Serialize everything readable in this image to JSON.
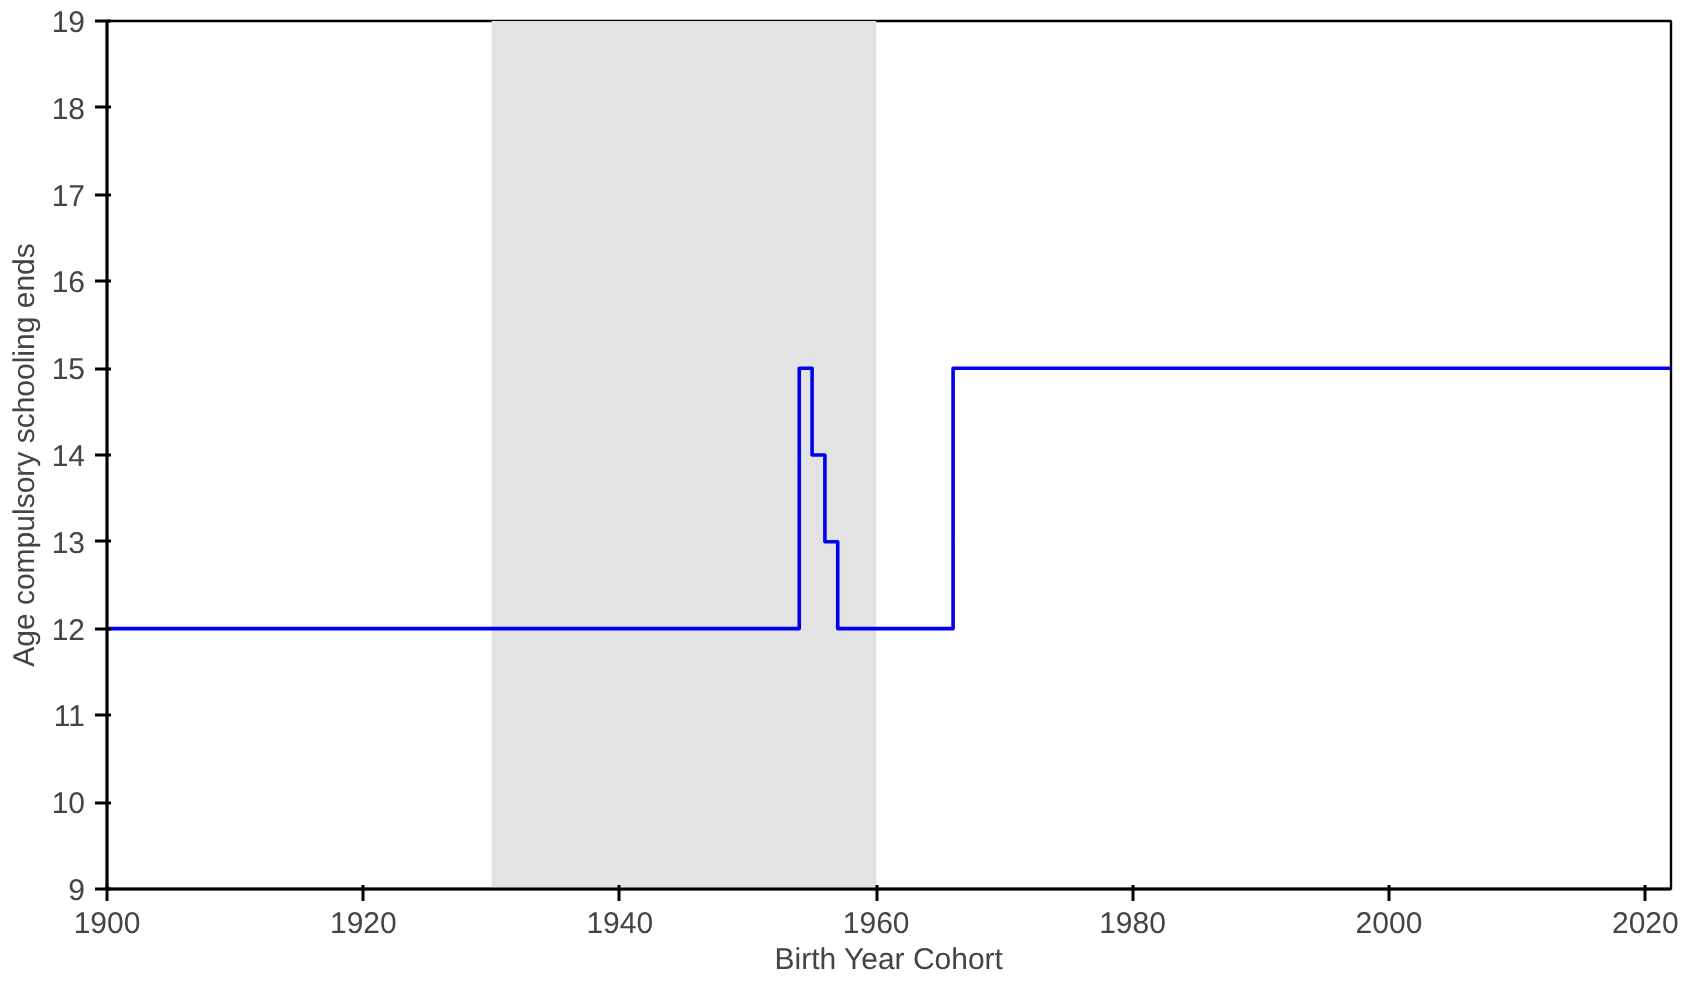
{
  "chart_data": {
    "type": "step",
    "xlabel": "Birth Year Cohort",
    "ylabel": "Age compulsory schooling ends",
    "x": [
      1900,
      1954,
      1955,
      1956,
      1957,
      1966,
      2022
    ],
    "series": [
      {
        "color": "#0000ee",
        "values": [
          12,
          15,
          14,
          13,
          12,
          15,
          15
        ]
      }
    ],
    "xlim": [
      1900,
      2022
    ],
    "xticks": [
      1900,
      1920,
      1940,
      1960,
      1980,
      2000,
      2020
    ],
    "ylim": [
      9,
      19
    ],
    "yticks": [
      9,
      10,
      11,
      12,
      13,
      14,
      15,
      16,
      17,
      18,
      19
    ],
    "bands": [
      {
        "axis": "x",
        "from": 1930,
        "to": 1960,
        "color": "#e3e3e3"
      }
    ],
    "grid": false
  }
}
